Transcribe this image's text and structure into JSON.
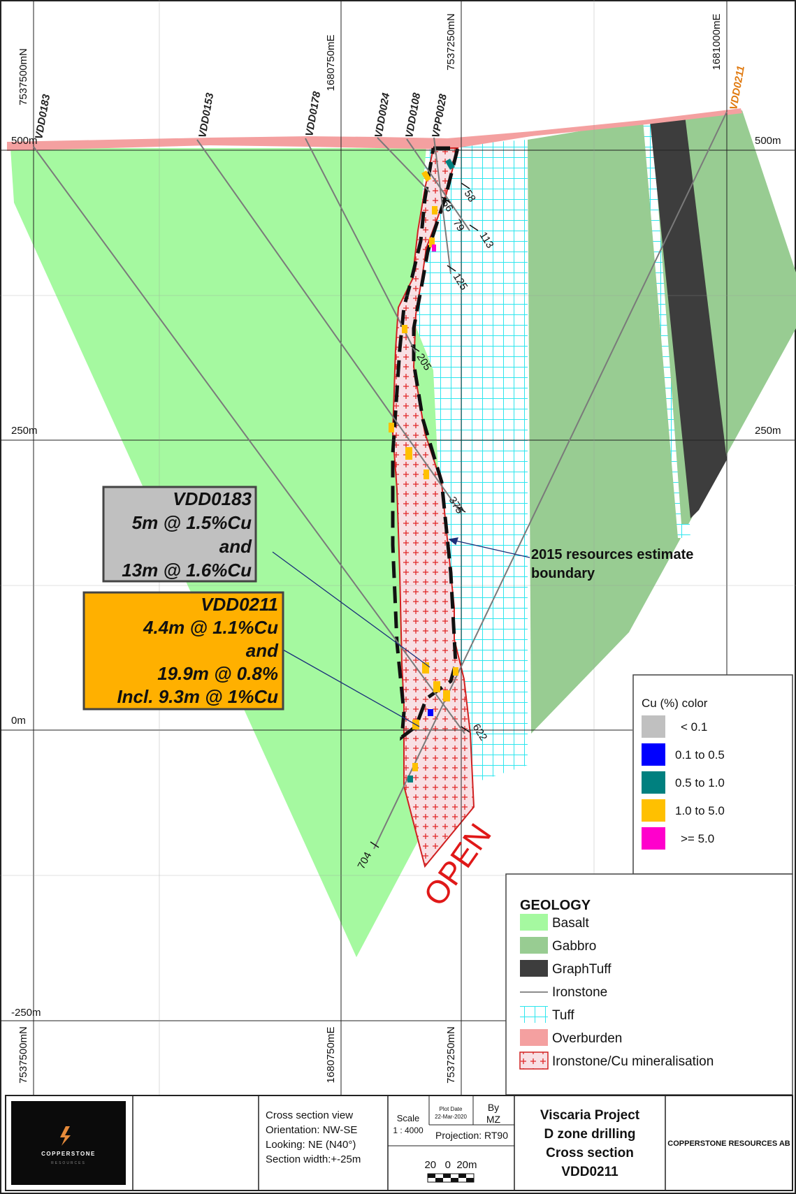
{
  "grid": {
    "top_left_northing": "7537500mN",
    "top_east_1": "1680750mE",
    "top_northing_2": "7537250mN",
    "top_east_2": "1681000mE",
    "bottom_left_northing": "7537500mN",
    "bottom_east_1": "1680750mE",
    "bottom_northing_2": "7537250mN",
    "elev_500_left": "500m",
    "elev_500_right": "500m",
    "elev_250_left": "250m",
    "elev_250_right": "250m",
    "elev_0": "0m",
    "elev_neg250": "-250m"
  },
  "drillholes": [
    {
      "id": "VDD0183",
      "color": "#222222"
    },
    {
      "id": "VDD0153",
      "color": "#222222"
    },
    {
      "id": "VDD0178",
      "color": "#222222"
    },
    {
      "id": "VDD0024",
      "color": "#222222"
    },
    {
      "id": "VDD0108",
      "color": "#222222"
    },
    {
      "id": "VPP0028",
      "color": "#222222"
    },
    {
      "id": "VDD0211",
      "color": "#e07a10"
    }
  ],
  "depth_labels": [
    "58",
    "56",
    "79",
    "113",
    "125",
    "205",
    "375",
    "622",
    "704"
  ],
  "annotations": {
    "boundary_line1": "2015 resources estimate",
    "boundary_line2": "boundary",
    "open": "OPEN"
  },
  "callouts": [
    {
      "lines": [
        "VDD0183",
        "5m @ 1.5%Cu",
        "and",
        "13m @ 1.6%Cu"
      ],
      "fill": "#c0c0c0"
    },
    {
      "lines": [
        "VDD0211",
        "4.4m @ 1.1%Cu",
        "and",
        "19.9m @ 0.8%",
        "Incl. 9.3m @ 1%Cu"
      ],
      "fill": "#ffb000"
    }
  ],
  "cu_legend": {
    "title": "Cu (%) color",
    "items": [
      {
        "label": "< 0.1",
        "color": "#c0c0c0"
      },
      {
        "label": "0.1 to 0.5",
        "color": "#0000ff"
      },
      {
        "label": "0.5 to 1.0",
        "color": "#00807f"
      },
      {
        "label": "1.0 to 5.0",
        "color": "#ffc000"
      },
      {
        "label": ">= 5.0",
        "color": "#ff00cc"
      }
    ]
  },
  "geology_legend": {
    "title": "GEOLOGY",
    "items": [
      {
        "label": "Basalt",
        "swatch": "basalt"
      },
      {
        "label": "Gabbro",
        "swatch": "gabbro"
      },
      {
        "label": "GraphTuff",
        "swatch": "graphtuff"
      },
      {
        "label": "Ironstone",
        "swatch": "line"
      },
      {
        "label": "Tuff",
        "swatch": "tuff"
      },
      {
        "label": "Overburden",
        "swatch": "overburden"
      },
      {
        "label": "Ironstone/Cu mineralisation",
        "swatch": "mineral"
      }
    ]
  },
  "colors": {
    "basalt": "#a5f9a0",
    "gabbro": "#98cc92",
    "graphtuff": "#3d3d3d",
    "tuff": "#2ee6ee",
    "overburden": "#f4a0a0",
    "mineral": "#e03030"
  },
  "title_block": {
    "logo_name": "COPPERSTONE",
    "logo_sub": "RESOURCES",
    "view_lines": [
      "Cross section view",
      "Orientation: NW-SE",
      "Looking: NE (N40°)",
      "Section width:+-25m"
    ],
    "scale_label": "Scale",
    "scale_value": "1 : 4000",
    "plot_date_label": "Plot Date",
    "plot_date_value": "22-Mar-2020",
    "by_label": "By",
    "by_value": "MZ",
    "projection": "Projection: RT90",
    "scalebar": "20   0  20m",
    "project_lines": [
      "Viscaria Project",
      "D zone drilling",
      "Cross section",
      "VDD0211"
    ],
    "company": "COPPERSTONE RESOURCES AB"
  }
}
